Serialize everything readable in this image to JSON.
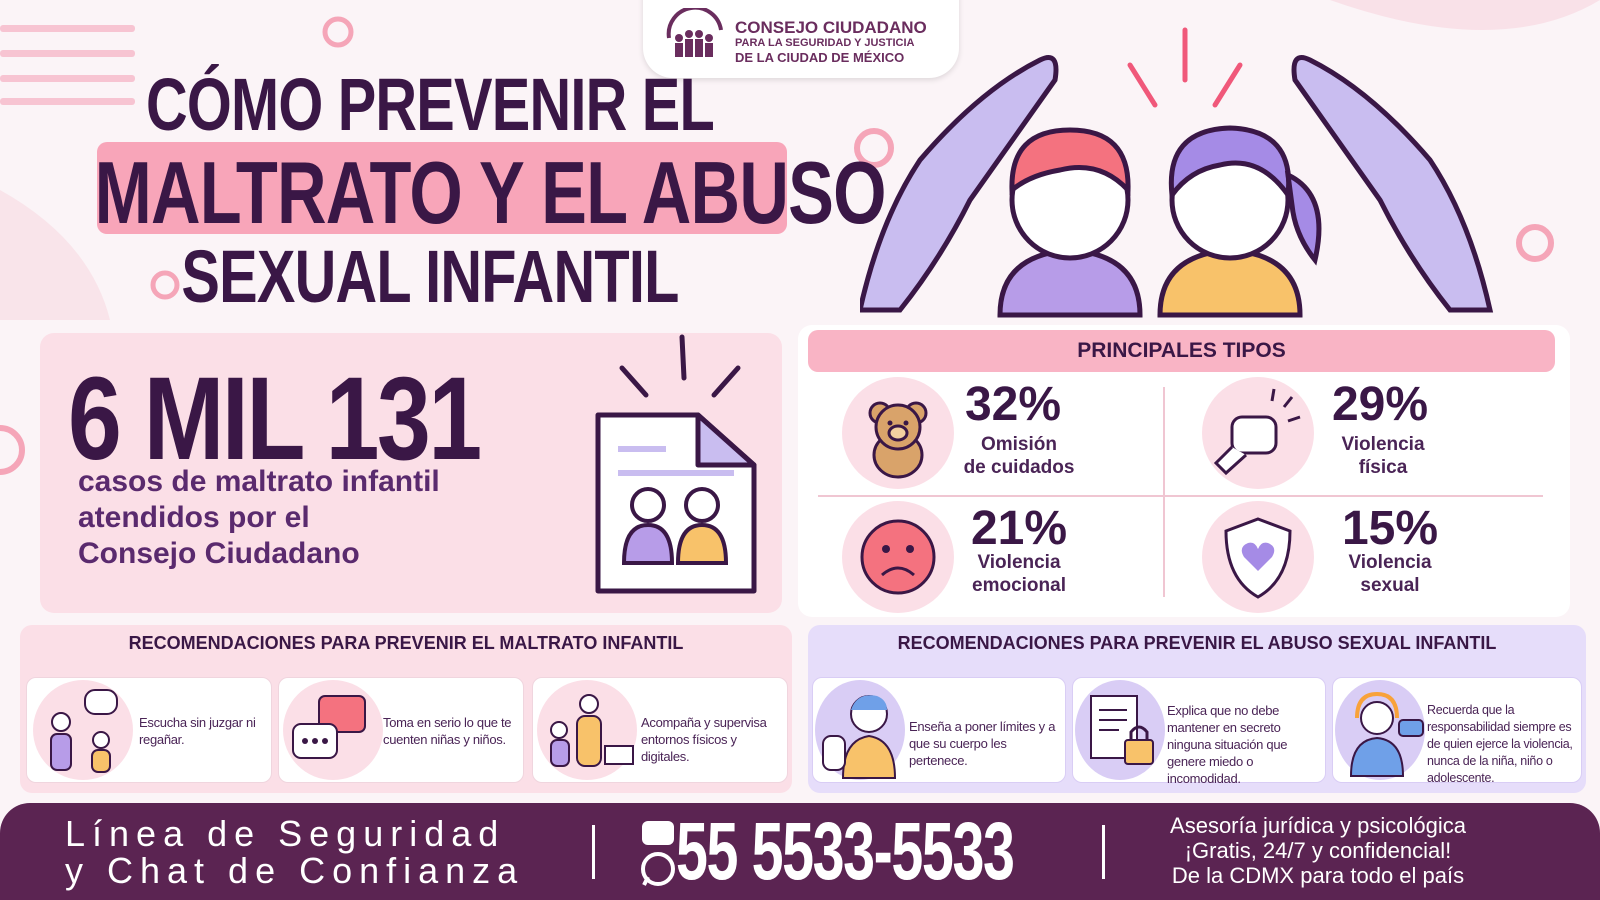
{
  "logo": {
    "lines": [
      "CONSEJO CIUDADANO",
      "PARA LA SEGURIDAD Y JUSTICIA",
      "DE LA CIUDAD DE MÉXICO"
    ]
  },
  "title": {
    "lines": [
      "CÓMO PREVENIR EL",
      "MALTRATO Y EL ABUSO",
      "SEXUAL INFANTIL"
    ]
  },
  "stat": {
    "number": "6 MIL 131",
    "description": [
      "casos de maltrato infantil",
      "atendidos por el",
      "Consejo Ciudadano"
    ]
  },
  "types": {
    "heading": "PRINCIPALES TIPOS",
    "items": [
      {
        "percent": "32%",
        "label": [
          "Omisión",
          "de cuidados"
        ]
      },
      {
        "percent": "29%",
        "label": [
          "Violencia",
          "física"
        ]
      },
      {
        "percent": "21%",
        "label": [
          "Violencia",
          "emocional"
        ]
      },
      {
        "percent": "15%",
        "label": [
          "Violencia",
          "sexual"
        ]
      }
    ]
  },
  "maltreatment_tips": {
    "heading": "RECOMENDACIONES PARA PREVENIR EL MALTRATO INFANTIL",
    "items": [
      "Escucha sin juzgar ni regañar.",
      "Toma en serio lo que te cuenten niñas y niños.",
      "Acompaña y supervisa entornos físicos y digitales."
    ]
  },
  "abuse_tips": {
    "heading": "RECOMENDACIONES PARA PREVENIR EL ABUSO SEXUAL INFANTIL",
    "items": [
      "Enseña a poner límites y a que su cuerpo les pertenece.",
      "Explica que no debe mantener en secreto ninguna situación que genere miedo o incomodidad.",
      "Recuerda que la responsabilidad siempre es de quien ejerce la violencia, nunca de la niña, niño o adolescente."
    ]
  },
  "footer": {
    "line_name": [
      "Línea de Seguridad",
      "y Chat de Confianza"
    ],
    "phone": "55 5533-5533",
    "info": [
      "Asesoría jurídica y psicológica",
      "¡Gratis, 24/7 y confidencial!",
      "De la CDMX para todo el país"
    ]
  }
}
